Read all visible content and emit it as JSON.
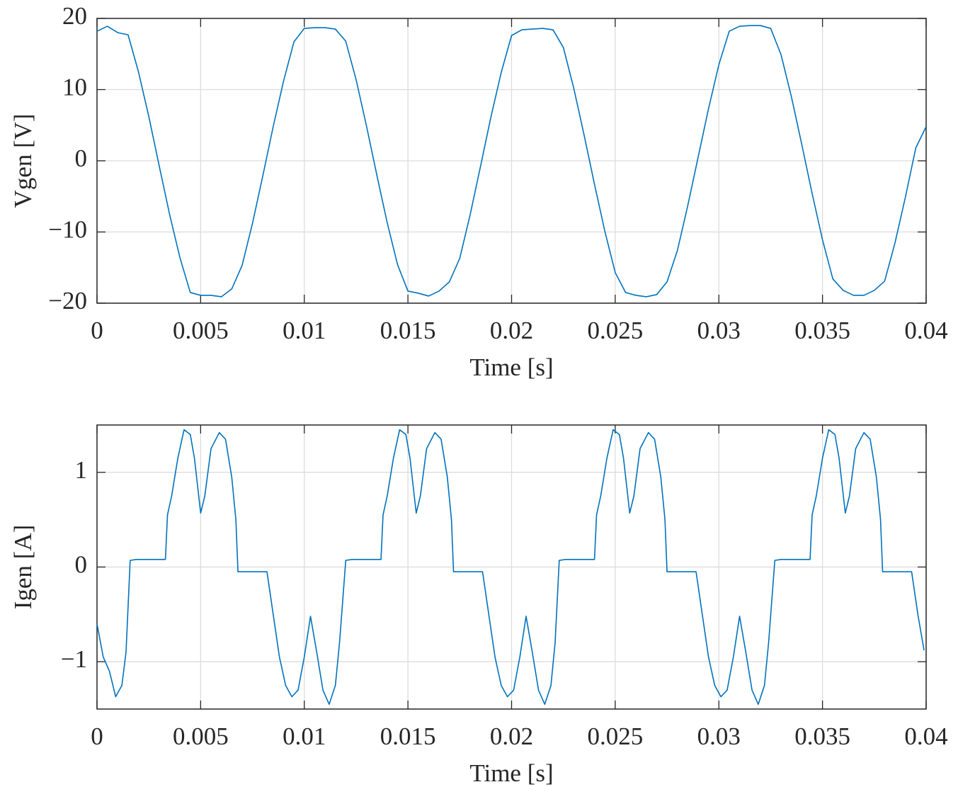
{
  "chart_data": [
    {
      "type": "line",
      "xlabel": "Time [s]",
      "ylabel": "Vgen [V]",
      "color": "#0072bd",
      "grid": true,
      "xlim": [
        0,
        0.04
      ],
      "ylim": [
        -20,
        20
      ],
      "xticks": [
        0,
        0.005,
        0.01,
        0.015,
        0.02,
        0.025,
        0.03,
        0.035,
        0.04
      ],
      "yticks": [
        {
          "value": -20,
          "label": "−20"
        },
        {
          "value": -10,
          "label": "−10"
        },
        0,
        10,
        20
      ],
      "x": [
        0,
        0.0005,
        0.001,
        0.0015,
        0.002,
        0.0025,
        0.003,
        0.0035,
        0.004,
        0.0045,
        0.005,
        0.0055,
        0.006,
        0.0065,
        0.007,
        0.0075,
        0.008,
        0.0085,
        0.009,
        0.0095,
        0.01,
        0.0105,
        0.011,
        0.0115,
        0.012,
        0.0125,
        0.013,
        0.0135,
        0.014,
        0.0145,
        0.015,
        0.0155,
        0.016,
        0.0165,
        0.017,
        0.0175,
        0.018,
        0.0185,
        0.019,
        0.0195,
        0.02,
        0.0205,
        0.021,
        0.0215,
        0.022,
        0.0225,
        0.023,
        0.0235,
        0.024,
        0.0245,
        0.025,
        0.0255,
        0.026,
        0.0265,
        0.027,
        0.0275,
        0.028,
        0.0285,
        0.029,
        0.0295,
        0.03,
        0.0305,
        0.031,
        0.0315,
        0.032,
        0.0325,
        0.033,
        0.0335,
        0.034,
        0.0345,
        0.035,
        0.0355,
        0.036,
        0.0365,
        0.037,
        0.0375,
        0.038,
        0.0385,
        0.039,
        0.0395,
        0.04
      ],
      "series": [
        {
          "color": "#0072bd",
          "values": [
            18.2,
            18.9,
            18.0,
            17.7,
            12.5,
            6.2,
            -0.7,
            -7.5,
            -13.6,
            -18.5,
            -18.9,
            -18.9,
            -19.1,
            -18.0,
            -14.7,
            -8.8,
            -2.1,
            4.8,
            11.2,
            16.7,
            18.6,
            18.7,
            18.7,
            18.5,
            16.8,
            11.4,
            4.9,
            -2.0,
            -8.7,
            -14.6,
            -18.3,
            -18.6,
            -19.0,
            -18.3,
            -17.0,
            -13.7,
            -7.6,
            -0.8,
            6.1,
            12.4,
            17.6,
            18.4,
            18.5,
            18.6,
            18.4,
            15.9,
            10.2,
            3.6,
            -3.3,
            -9.9,
            -15.7,
            -18.5,
            -18.9,
            -19.1,
            -18.8,
            -17.0,
            -12.6,
            -6.3,
            0.5,
            7.3,
            13.5,
            18.2,
            18.9,
            19.0,
            19.0,
            18.6,
            14.9,
            9.0,
            2.3,
            -4.6,
            -11.1,
            -16.6,
            -18.2,
            -18.9,
            -18.9,
            -18.2,
            -16.9,
            -11.5,
            -5.1,
            1.8,
            4.8
          ]
        }
      ]
    },
    {
      "type": "line",
      "xlabel": "Time [s]",
      "ylabel": "Igen [A]",
      "color": "#0072bd",
      "grid": true,
      "xlim": [
        0,
        0.04
      ],
      "ylim": [
        -1.5,
        1.5
      ],
      "xticks": [
        0,
        0.005,
        0.01,
        0.015,
        0.02,
        0.025,
        0.03,
        0.035,
        0.04
      ],
      "yticks": [
        {
          "value": -1,
          "label": "−1"
        },
        0,
        1
      ],
      "x": [
        0,
        0.0003,
        0.0006,
        0.0009,
        0.0012,
        0.0014,
        0.0016,
        0.0019,
        0.0033,
        0.0034,
        0.0036,
        0.0039,
        0.0042,
        0.0045,
        0.0047,
        0.005,
        0.0052,
        0.0055,
        0.0059,
        0.0062,
        0.0065,
        0.0067,
        0.0068,
        0.0082,
        0.0083,
        0.0085,
        0.0088,
        0.0091,
        0.0094,
        0.0097,
        0.01,
        0.0103,
        0.0106,
        0.0109,
        0.0112,
        0.0115,
        0.0117,
        0.012,
        0.0123,
        0.0137,
        0.0138,
        0.014,
        0.0143,
        0.0146,
        0.0149,
        0.0151,
        0.0154,
        0.0156,
        0.0159,
        0.0163,
        0.0166,
        0.0169,
        0.0171,
        0.0172,
        0.0186,
        0.0187,
        0.0189,
        0.0192,
        0.0195,
        0.0198,
        0.0201,
        0.0204,
        0.0207,
        0.021,
        0.0213,
        0.0216,
        0.0219,
        0.0221,
        0.0223,
        0.0226,
        0.024,
        0.0241,
        0.0243,
        0.0246,
        0.0249,
        0.0252,
        0.0254,
        0.0257,
        0.0259,
        0.0262,
        0.0266,
        0.0269,
        0.0272,
        0.0274,
        0.0275,
        0.0289,
        0.029,
        0.0292,
        0.0295,
        0.0298,
        0.0301,
        0.0304,
        0.0307,
        0.031,
        0.0313,
        0.0316,
        0.0319,
        0.0322,
        0.0324,
        0.0327,
        0.033,
        0.0344,
        0.0345,
        0.0347,
        0.035,
        0.0353,
        0.0356,
        0.0358,
        0.0361,
        0.0363,
        0.0366,
        0.037,
        0.0373,
        0.0376,
        0.0378,
        0.0379,
        0.0393,
        0.0394,
        0.0396,
        0.0399
      ],
      "series": [
        {
          "color": "#0072bd",
          "values": [
            -0.6,
            -0.95,
            -1.1,
            -1.37,
            -1.25,
            -0.9,
            0.07,
            0.08,
            0.08,
            0.55,
            0.75,
            1.15,
            1.45,
            1.4,
            1.15,
            0.57,
            0.75,
            1.25,
            1.42,
            1.35,
            0.95,
            0.5,
            -0.05,
            -0.05,
            -0.2,
            -0.5,
            -0.95,
            -1.25,
            -1.37,
            -1.3,
            -0.95,
            -0.52,
            -0.9,
            -1.3,
            -1.45,
            -1.25,
            -0.8,
            0.07,
            0.08,
            0.08,
            0.55,
            0.75,
            1.15,
            1.45,
            1.4,
            1.15,
            0.57,
            0.75,
            1.25,
            1.42,
            1.35,
            0.95,
            0.5,
            -0.05,
            -0.05,
            -0.2,
            -0.5,
            -0.95,
            -1.25,
            -1.37,
            -1.3,
            -0.95,
            -0.52,
            -0.9,
            -1.3,
            -1.45,
            -1.25,
            -0.8,
            0.07,
            0.08,
            0.08,
            0.55,
            0.75,
            1.15,
            1.45,
            1.4,
            1.15,
            0.57,
            0.75,
            1.25,
            1.42,
            1.35,
            0.95,
            0.5,
            -0.05,
            -0.05,
            -0.2,
            -0.5,
            -0.95,
            -1.25,
            -1.37,
            -1.3,
            -0.95,
            -0.52,
            -0.9,
            -1.3,
            -1.45,
            -1.25,
            -0.8,
            0.07,
            0.08,
            0.08,
            0.55,
            0.75,
            1.15,
            1.45,
            1.4,
            1.15,
            0.57,
            0.75,
            1.25,
            1.42,
            1.35,
            0.95,
            0.5,
            -0.05,
            -0.05,
            -0.2,
            -0.5,
            -0.88
          ]
        }
      ]
    }
  ]
}
